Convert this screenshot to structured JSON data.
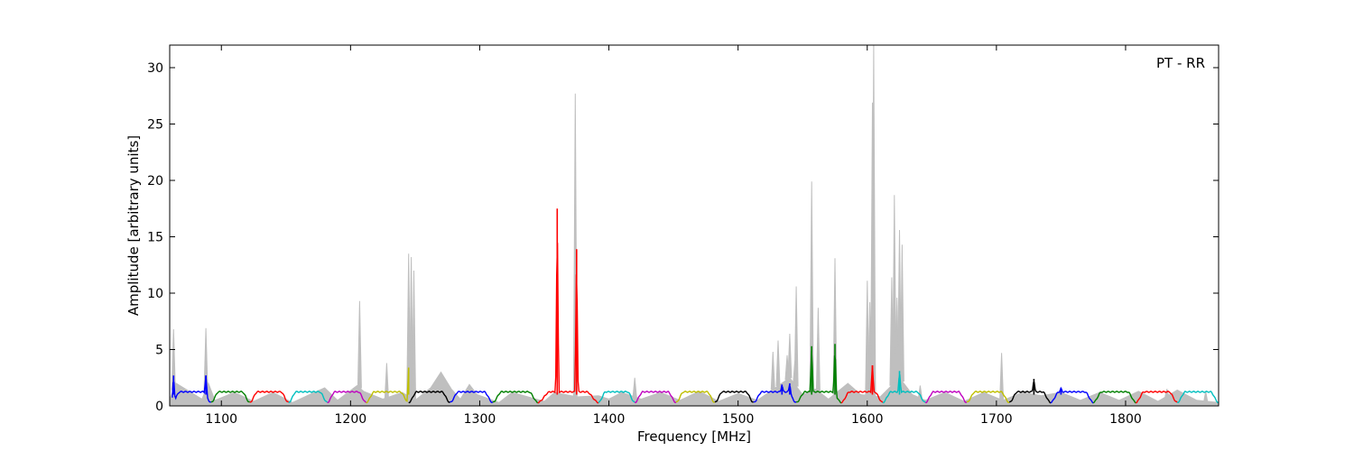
{
  "chart_data": {
    "type": "line",
    "annotation": "PT - RR",
    "xlabel": "Frequency [MHz]",
    "ylabel": "Amplitude [arbitrary units]",
    "xlim": [
      1060,
      1872
    ],
    "ylim": [
      0,
      32
    ],
    "x_ticks": [
      1100,
      1200,
      1300,
      1400,
      1500,
      1600,
      1700,
      1800
    ],
    "y_ticks": [
      0,
      5,
      10,
      15,
      20,
      25,
      30
    ],
    "grid": false,
    "raw_spectrum": {
      "color": "#bfbfbf",
      "baseline": [
        [
          1060,
          0.6
        ],
        [
          1065,
          2.0
        ],
        [
          1085,
          0.6
        ],
        [
          1090,
          2.0
        ],
        [
          1095,
          0.5
        ],
        [
          1110,
          1.2
        ],
        [
          1125,
          0.4
        ],
        [
          1140,
          1.2
        ],
        [
          1155,
          0.3
        ],
        [
          1170,
          1.1
        ],
        [
          1180,
          1.6
        ],
        [
          1190,
          0.5
        ],
        [
          1205,
          1.8
        ],
        [
          1210,
          1.3
        ],
        [
          1225,
          0.6
        ],
        [
          1240,
          1.2
        ],
        [
          1250,
          0.5
        ],
        [
          1262,
          1.6
        ],
        [
          1270,
          3.0
        ],
        [
          1278,
          1.5
        ],
        [
          1285,
          0.6
        ],
        [
          1292,
          1.9
        ],
        [
          1298,
          1.0
        ],
        [
          1315,
          0.3
        ],
        [
          1325,
          1.2
        ],
        [
          1350,
          0.4
        ],
        [
          1358,
          1.2
        ],
        [
          1375,
          0.8
        ],
        [
          1392,
          0.9
        ],
        [
          1400,
          0.6
        ],
        [
          1410,
          1.2
        ],
        [
          1425,
          0.6
        ],
        [
          1440,
          1.2
        ],
        [
          1455,
          0.5
        ],
        [
          1470,
          1.3
        ],
        [
          1485,
          0.4
        ],
        [
          1500,
          1.1
        ],
        [
          1515,
          0.5
        ],
        [
          1525,
          1.3
        ],
        [
          1540,
          2.5
        ],
        [
          1550,
          1.0
        ],
        [
          1560,
          1.5
        ],
        [
          1570,
          0.6
        ],
        [
          1585,
          2.0
        ],
        [
          1595,
          1.0
        ],
        [
          1610,
          0.8
        ],
        [
          1625,
          2.5
        ],
        [
          1635,
          1.0
        ],
        [
          1645,
          0.5
        ],
        [
          1660,
          1.2
        ],
        [
          1675,
          0.4
        ],
        [
          1690,
          1.2
        ],
        [
          1705,
          0.5
        ],
        [
          1720,
          1.2
        ],
        [
          1735,
          0.9
        ],
        [
          1750,
          1.2
        ],
        [
          1765,
          0.5
        ],
        [
          1780,
          1.2
        ],
        [
          1795,
          0.5
        ],
        [
          1810,
          1.3
        ],
        [
          1825,
          0.4
        ],
        [
          1840,
          1.4
        ],
        [
          1855,
          0.5
        ],
        [
          1872,
          0.3
        ]
      ],
      "spikes": [
        [
          1063,
          6.8
        ],
        [
          1088,
          6.9
        ],
        [
          1207,
          9.3
        ],
        [
          1228,
          3.8
        ],
        [
          1245,
          13.5
        ],
        [
          1247,
          13.2
        ],
        [
          1249,
          12.0
        ],
        [
          1374,
          27.7
        ],
        [
          1420,
          2.5
        ],
        [
          1527,
          4.8
        ],
        [
          1531,
          5.8
        ],
        [
          1538,
          4.5
        ],
        [
          1540,
          6.4
        ],
        [
          1544,
          4.0
        ],
        [
          1545,
          10.6
        ],
        [
          1557,
          19.9
        ],
        [
          1562,
          8.7
        ],
        [
          1575,
          13.1
        ],
        [
          1600,
          11.1
        ],
        [
          1602,
          9.2
        ],
        [
          1604,
          26.9
        ],
        [
          1605,
          32.0
        ],
        [
          1619,
          11.4
        ],
        [
          1621,
          18.7
        ],
        [
          1623,
          9.6
        ],
        [
          1625,
          15.6
        ],
        [
          1627,
          14.3
        ],
        [
          1641,
          1.8
        ],
        [
          1704,
          4.7
        ],
        [
          1832,
          1.5
        ],
        [
          1862,
          1.3
        ]
      ]
    },
    "series": [
      {
        "color": "#0000ff",
        "range": [
          1062,
          1092
        ],
        "spikes": [
          [
            1063,
            2.7
          ],
          [
            1088,
            2.7
          ]
        ]
      },
      {
        "color": "#008000",
        "range": [
          1092,
          1122
        ],
        "spikes": []
      },
      {
        "color": "#ff0000",
        "range": [
          1122,
          1152
        ],
        "spikes": []
      },
      {
        "color": "#00bfbf",
        "range": [
          1152,
          1182
        ],
        "spikes": []
      },
      {
        "color": "#bf00bf",
        "range": [
          1182,
          1212
        ],
        "spikes": []
      },
      {
        "color": "#bfbf00",
        "range": [
          1212,
          1245
        ],
        "spikes": [
          [
            1245,
            3.4
          ]
        ]
      },
      {
        "color": "#000000",
        "range": [
          1245,
          1277
        ],
        "spikes": []
      },
      {
        "color": "#0000ff",
        "range": [
          1277,
          1310
        ],
        "spikes": []
      },
      {
        "color": "#008000",
        "range": [
          1310,
          1345
        ],
        "spikes": []
      },
      {
        "color": "#ff0000",
        "range": [
          1345,
          1392
        ],
        "spikes": [
          [
            1360,
            17.5
          ],
          [
            1375,
            13.9
          ]
        ]
      },
      {
        "color": "#00bfbf",
        "range": [
          1392,
          1420
        ],
        "spikes": []
      },
      {
        "color": "#bf00bf",
        "range": [
          1420,
          1452
        ],
        "spikes": []
      },
      {
        "color": "#bfbf00",
        "range": [
          1452,
          1482
        ],
        "spikes": []
      },
      {
        "color": "#000000",
        "range": [
          1482,
          1512
        ],
        "spikes": []
      },
      {
        "color": "#0000ff",
        "range": [
          1512,
          1545
        ],
        "spikes": [
          [
            1534,
            1.9
          ],
          [
            1540,
            2.0
          ]
        ]
      },
      {
        "color": "#008000",
        "range": [
          1545,
          1580
        ],
        "spikes": [
          [
            1557,
            5.3
          ],
          [
            1575,
            5.5
          ]
        ]
      },
      {
        "color": "#ff0000",
        "range": [
          1580,
          1612
        ],
        "spikes": [
          [
            1604,
            3.6
          ]
        ]
      },
      {
        "color": "#00bfbf",
        "range": [
          1612,
          1645
        ],
        "spikes": [
          [
            1625,
            3.1
          ]
        ]
      },
      {
        "color": "#bf00bf",
        "range": [
          1645,
          1677
        ],
        "spikes": []
      },
      {
        "color": "#bfbf00",
        "range": [
          1677,
          1710
        ],
        "spikes": []
      },
      {
        "color": "#000000",
        "range": [
          1710,
          1742
        ],
        "spikes": [
          [
            1729,
            2.4
          ]
        ]
      },
      {
        "color": "#0000ff",
        "range": [
          1742,
          1775
        ],
        "spikes": [
          [
            1750,
            1.6
          ]
        ]
      },
      {
        "color": "#008000",
        "range": [
          1775,
          1808
        ],
        "spikes": []
      },
      {
        "color": "#ff0000",
        "range": [
          1808,
          1840
        ],
        "spikes": []
      },
      {
        "color": "#00bfbf",
        "range": [
          1840,
          1872
        ],
        "spikes": []
      }
    ]
  }
}
